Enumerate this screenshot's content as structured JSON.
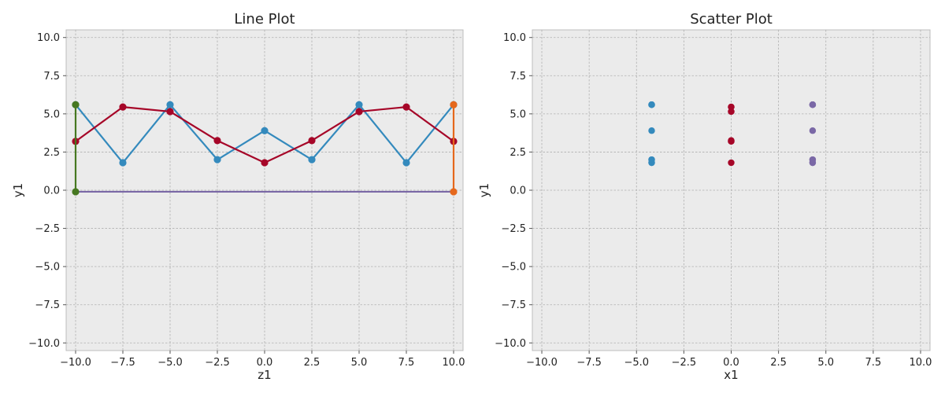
{
  "chart_data": [
    {
      "type": "line",
      "title": "Line Plot",
      "xlabel": "z1",
      "ylabel": "y1",
      "xlim": [
        -10.5,
        10.5
      ],
      "ylim": [
        -10.5,
        10.5
      ],
      "xticks": [
        -10,
        -7.5,
        -5,
        -2.5,
        0,
        2.5,
        5,
        7.5,
        10
      ],
      "yticks": [
        -10,
        -7.5,
        -5,
        -2.5,
        0,
        2.5,
        5,
        7.5,
        10
      ],
      "xtick_labels": [
        "−10.0",
        "−7.5",
        "−5.0",
        "−2.5",
        "0.0",
        "2.5",
        "5.0",
        "7.5",
        "10.0"
      ],
      "ytick_labels": [
        "−10.0",
        "−7.5",
        "−5.0",
        "−2.5",
        "0.0",
        "2.5",
        "5.0",
        "7.5",
        "10.0"
      ],
      "grid": true,
      "series": [
        {
          "color": "#348abd",
          "markers": true,
          "x": [
            -10,
            -7.5,
            -5,
            -2.5,
            0,
            2.5,
            5,
            7.5,
            10
          ],
          "y": [
            5.6,
            1.8,
            5.6,
            2.0,
            3.9,
            2.0,
            5.6,
            1.8,
            5.6
          ]
        },
        {
          "color": "#a60628",
          "markers": true,
          "x": [
            -10,
            -7.5,
            -5,
            -2.5,
            0,
            2.5,
            5,
            7.5,
            10
          ],
          "y": [
            3.2,
            5.45,
            5.15,
            3.25,
            1.8,
            3.25,
            5.15,
            5.45,
            3.2
          ]
        },
        {
          "color": "#7a68a6",
          "markers": false,
          "x": [
            -10,
            10
          ],
          "y": [
            -0.1,
            -0.1
          ]
        },
        {
          "color": "#467821",
          "markers": true,
          "x": [
            -10,
            -10
          ],
          "y": [
            5.6,
            -0.1
          ]
        },
        {
          "color": "#e5681c",
          "markers": true,
          "x": [
            10,
            10
          ],
          "y": [
            5.6,
            -0.1
          ]
        }
      ]
    },
    {
      "type": "scatter",
      "title": "Scatter Plot",
      "xlabel": "x1",
      "ylabel": "y1",
      "xlim": [
        -10.5,
        10.5
      ],
      "ylim": [
        -10.5,
        10.5
      ],
      "xticks": [
        -10,
        -7.5,
        -5,
        -2.5,
        0,
        2.5,
        5,
        7.5,
        10
      ],
      "yticks": [
        -10,
        -7.5,
        -5,
        -2.5,
        0,
        2.5,
        5,
        7.5,
        10
      ],
      "xtick_labels": [
        "−10.0",
        "−7.5",
        "−5.0",
        "−2.5",
        "0.0",
        "2.5",
        "5.0",
        "7.5",
        "10.0"
      ],
      "ytick_labels": [
        "−10.0",
        "−7.5",
        "−5.0",
        "−2.5",
        "0.0",
        "2.5",
        "5.0",
        "7.5",
        "10.0"
      ],
      "grid": true,
      "series": [
        {
          "color": "#348abd",
          "x": [
            -4.2,
            -4.2,
            -4.2,
            -4.2,
            -4.2,
            -4.2,
            -4.2,
            -4.2,
            -4.2
          ],
          "y": [
            5.6,
            1.8,
            5.6,
            2.0,
            3.9,
            2.0,
            5.6,
            1.8,
            5.6
          ]
        },
        {
          "color": "#a60628",
          "x": [
            0,
            0,
            0,
            0,
            0,
            0,
            0,
            0,
            0
          ],
          "y": [
            3.2,
            5.45,
            5.15,
            3.25,
            1.8,
            3.25,
            5.15,
            5.45,
            3.2
          ]
        },
        {
          "color": "#7a68a6",
          "x": [
            4.3,
            4.3,
            4.3,
            4.3,
            4.3,
            4.3,
            4.3,
            4.3,
            4.3
          ],
          "y": [
            5.6,
            1.8,
            5.6,
            2.0,
            3.9,
            2.0,
            5.6,
            1.8,
            5.6
          ]
        }
      ]
    }
  ]
}
